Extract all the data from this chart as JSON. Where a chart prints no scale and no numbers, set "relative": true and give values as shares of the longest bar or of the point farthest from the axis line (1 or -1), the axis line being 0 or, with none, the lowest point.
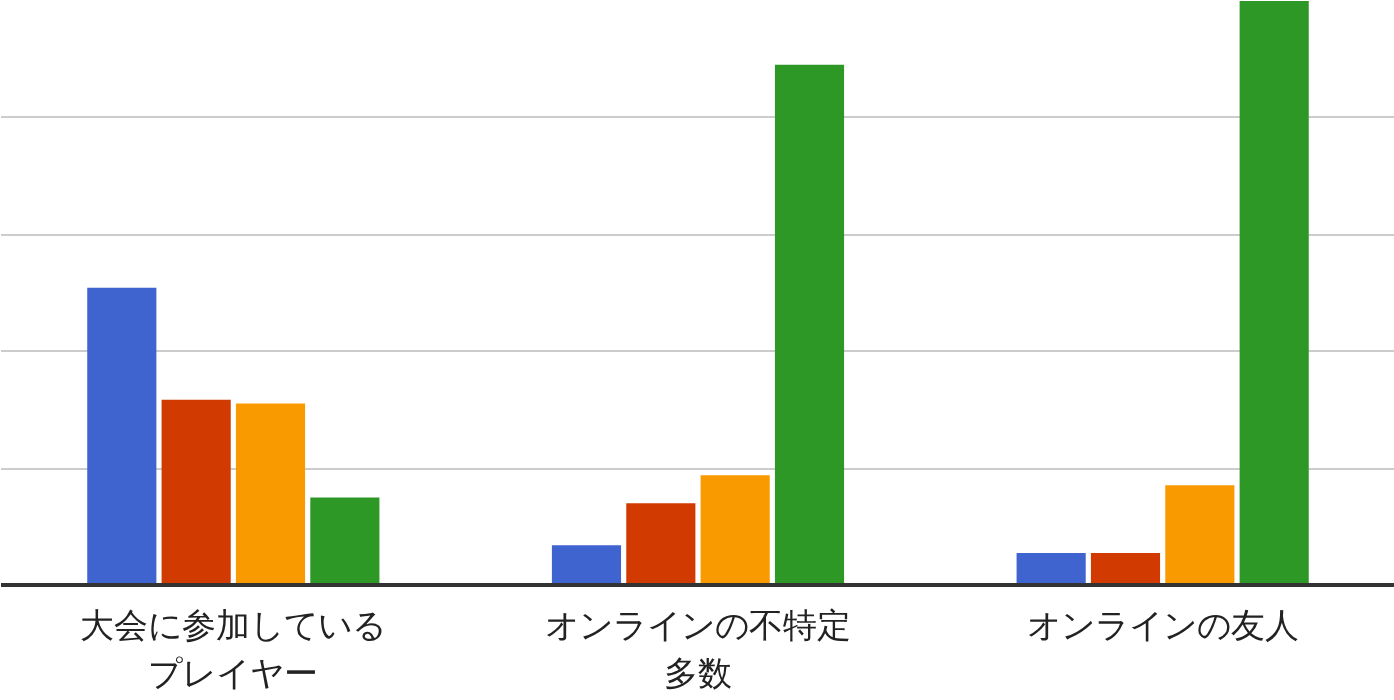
{
  "chart_data": {
    "type": "bar",
    "relative": true,
    "grid": "y",
    "categories": [
      "大会に参加しているプレイヤー",
      "オンラインの不特定多数",
      "オンラインの友人"
    ],
    "series": [
      {
        "color": "#3f63cf",
        "values": [
          0.509,
          0.068,
          0.055
        ]
      },
      {
        "color": "#d13a00",
        "values": [
          0.317,
          0.14,
          0.055
        ]
      },
      {
        "color": "#f99a00",
        "values": [
          0.311,
          0.188,
          0.171
        ]
      },
      {
        "color": "#2e9827",
        "values": [
          0.15,
          0.891,
          1.0
        ]
      }
    ]
  }
}
